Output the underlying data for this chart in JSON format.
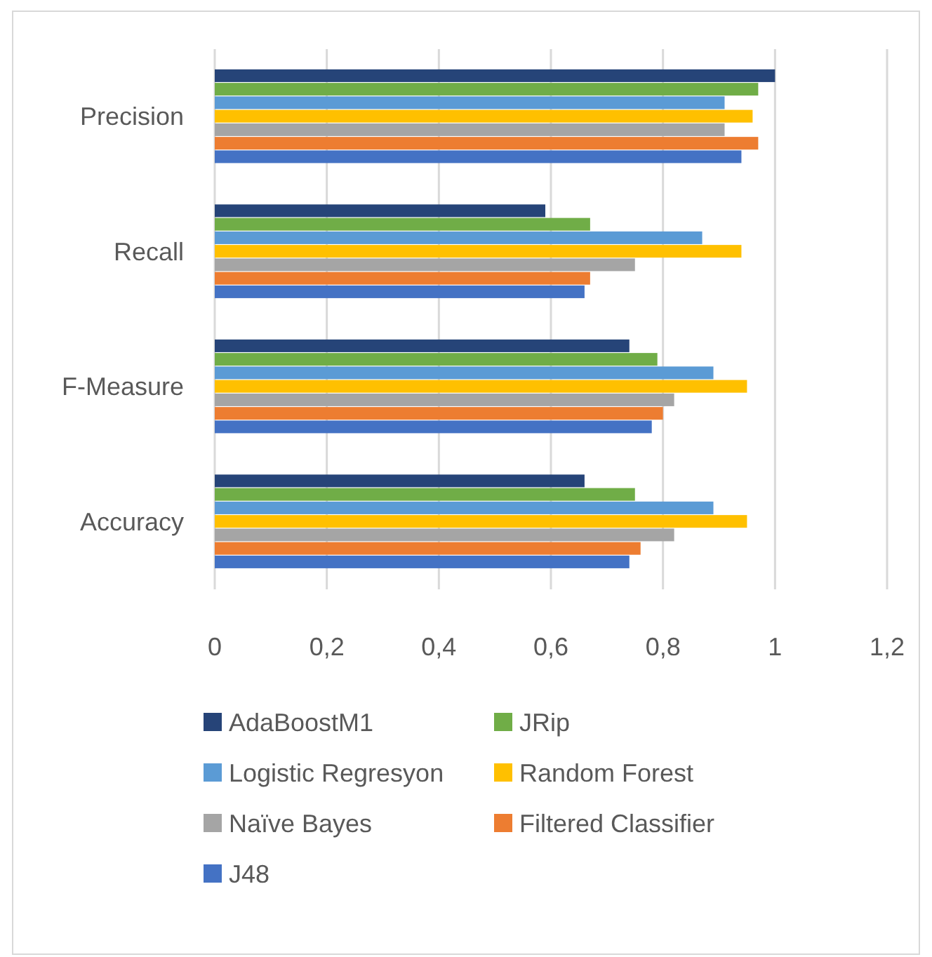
{
  "chart_data": {
    "type": "bar",
    "orientation": "horizontal",
    "categories": [
      "Precision",
      "Recall",
      "F-Measure",
      "Accuracy"
    ],
    "series": [
      {
        "name": "AdaBoostM1",
        "color": "#264478",
        "values": [
          1.0,
          0.59,
          0.74,
          0.66
        ]
      },
      {
        "name": "JRip",
        "color": "#70ad47",
        "values": [
          0.97,
          0.67,
          0.79,
          0.75
        ]
      },
      {
        "name": "Logistic Regresyon",
        "color": "#5b9bd5",
        "values": [
          0.91,
          0.87,
          0.89,
          0.89
        ]
      },
      {
        "name": "Random Forest",
        "color": "#ffc000",
        "values": [
          0.96,
          0.94,
          0.95,
          0.95
        ]
      },
      {
        "name": "Naïve Bayes",
        "color": "#a5a5a5",
        "values": [
          0.91,
          0.75,
          0.82,
          0.82
        ]
      },
      {
        "name": "Filtered Classifier",
        "color": "#ed7d31",
        "values": [
          0.97,
          0.67,
          0.8,
          0.76
        ]
      },
      {
        "name": "J48",
        "color": "#4472c4",
        "values": [
          0.94,
          0.66,
          0.78,
          0.74
        ]
      }
    ],
    "xlim": [
      0,
      1.2
    ],
    "xticks": [
      0,
      {
        "value": 0.2,
        "label": "0,2"
      },
      {
        "value": 0.4,
        "label": "0,4"
      },
      {
        "value": 0.6,
        "label": "0,6"
      },
      {
        "value": 0.8,
        "label": "0,8"
      },
      1,
      {
        "value": 1.2,
        "label": "1,2"
      }
    ],
    "grid": "x",
    "legend": "bottom"
  }
}
